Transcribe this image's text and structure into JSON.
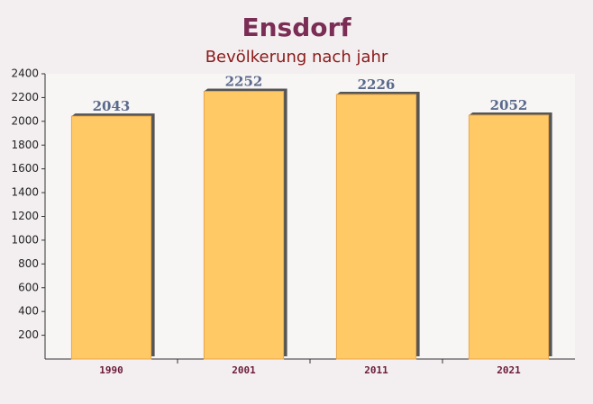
{
  "chart_data": {
    "type": "bar",
    "title": "Ensdorf",
    "subtitle": "Bevölkerung nach jahr",
    "categories": [
      "1990",
      "2001",
      "2011",
      "2021"
    ],
    "values": [
      2043,
      2252,
      2226,
      2052
    ],
    "color": "#ffc966",
    "ylim": [
      0,
      2400
    ],
    "yticks": [
      200,
      400,
      600,
      800,
      1000,
      1200,
      1400,
      1600,
      1800,
      2000,
      2200,
      2400
    ],
    "grid": false
  }
}
